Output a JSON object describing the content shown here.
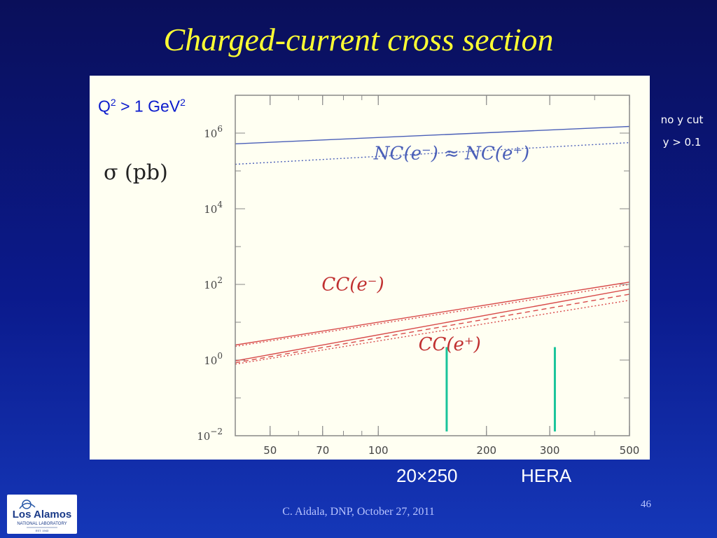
{
  "slide": {
    "title": "Charged-current cross section",
    "footer": "C. Aidala, DNP, October 27, 2011",
    "page_number": "46",
    "legend_no_y_cut": "no y cut",
    "legend_y_cut": "y > 0.1",
    "cut_q": "Q",
    "cut_q_sup": "2",
    "cut_mid": " > 1 GeV",
    "cut_gev_sup": "2",
    "marker_label_left": "20×250",
    "marker_label_right": "HERA",
    "logo": {
      "text": "Los Alamos",
      "subtext": "NATIONAL LABORATORY",
      "est": "EST. 1943"
    }
  },
  "chart_data": {
    "type": "line",
    "ylabel": "σ (pb)",
    "xlabel": "",
    "x_scale": "log",
    "y_scale": "log",
    "xlim": [
      40,
      500
    ],
    "ylim": [
      0.01,
      10000000
    ],
    "x_ticks": [
      {
        "value": 50,
        "label": "50"
      },
      {
        "value": 70,
        "label": "70"
      },
      {
        "value": 100,
        "label": "100"
      },
      {
        "value": 200,
        "label": "200"
      },
      {
        "value": 300,
        "label": "300"
      },
      {
        "value": 500,
        "label": "500"
      }
    ],
    "y_ticks": [
      {
        "value": 1000000,
        "base": "10",
        "exp": "6"
      },
      {
        "value": 10000,
        "base": "10",
        "exp": "4"
      },
      {
        "value": 100,
        "base": "10",
        "exp": "2"
      },
      {
        "value": 1,
        "base": "10",
        "exp": "0"
      },
      {
        "value": 0.01,
        "base": "10",
        "exp": "−2"
      }
    ],
    "series": [
      {
        "x": [
          40,
          500
        ],
        "y": [
          520000,
          1500000
        ],
        "color": "#4a5fb8",
        "dash": "solid"
      },
      {
        "x": [
          40,
          500
        ],
        "y": [
          150000,
          560000
        ],
        "color": "#4a5fb8",
        "dash": "dot"
      },
      {
        "x": [
          40,
          500
        ],
        "y": [
          2.5,
          115
        ],
        "color": "#d84a4a",
        "dash": "solid"
      },
      {
        "x": [
          40,
          500
        ],
        "y": [
          2.3,
          100
        ],
        "color": "#d84a4a",
        "dash": "dot"
      },
      {
        "x": [
          40,
          500
        ],
        "y": [
          0.95,
          75
        ],
        "color": "#d84a4a",
        "dash": "solid"
      },
      {
        "x": [
          40,
          500
        ],
        "y": [
          0.85,
          55
        ],
        "color": "#d84a4a",
        "dash": "dash"
      },
      {
        "x": [
          40,
          500
        ],
        "y": [
          0.78,
          38
        ],
        "color": "#d84a4a",
        "dash": "dot"
      }
    ],
    "annotations": [
      {
        "text": "NC(e⁻) ≈ NC(e⁺)",
        "x": 160,
        "y": 200000,
        "color": "#4a5fb8"
      },
      {
        "text": "CC(e⁻)",
        "x": 85,
        "y": 70,
        "color": "#c03030"
      },
      {
        "text": "CC(e⁺)",
        "x": 158,
        "y": 1.8,
        "color": "#c03030"
      }
    ],
    "markers": [
      {
        "x": 155,
        "y_low": 0.013,
        "y_high": 2.2,
        "color": "#19c49a"
      },
      {
        "x": 310,
        "y_low": 0.013,
        "y_high": 2.2,
        "color": "#19c49a"
      }
    ]
  }
}
